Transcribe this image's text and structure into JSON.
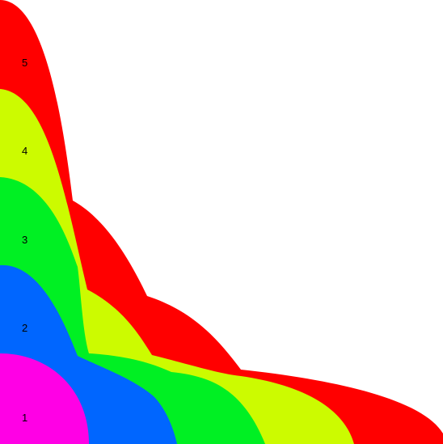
{
  "chart_data": {
    "type": "nested-area",
    "title": "",
    "xlabel": "",
    "ylabel": "",
    "legend": "none",
    "grid": false,
    "series": [
      {
        "name": "1",
        "label": "1",
        "color": "#ff00e5"
      },
      {
        "name": "2",
        "label": "2",
        "color": "#0066ff"
      },
      {
        "name": "3",
        "label": "3",
        "color": "#00f023"
      },
      {
        "name": "4",
        "label": "4",
        "color": "#ccfb00"
      },
      {
        "name": "5",
        "label": "5",
        "color": "#ff0000"
      }
    ]
  }
}
